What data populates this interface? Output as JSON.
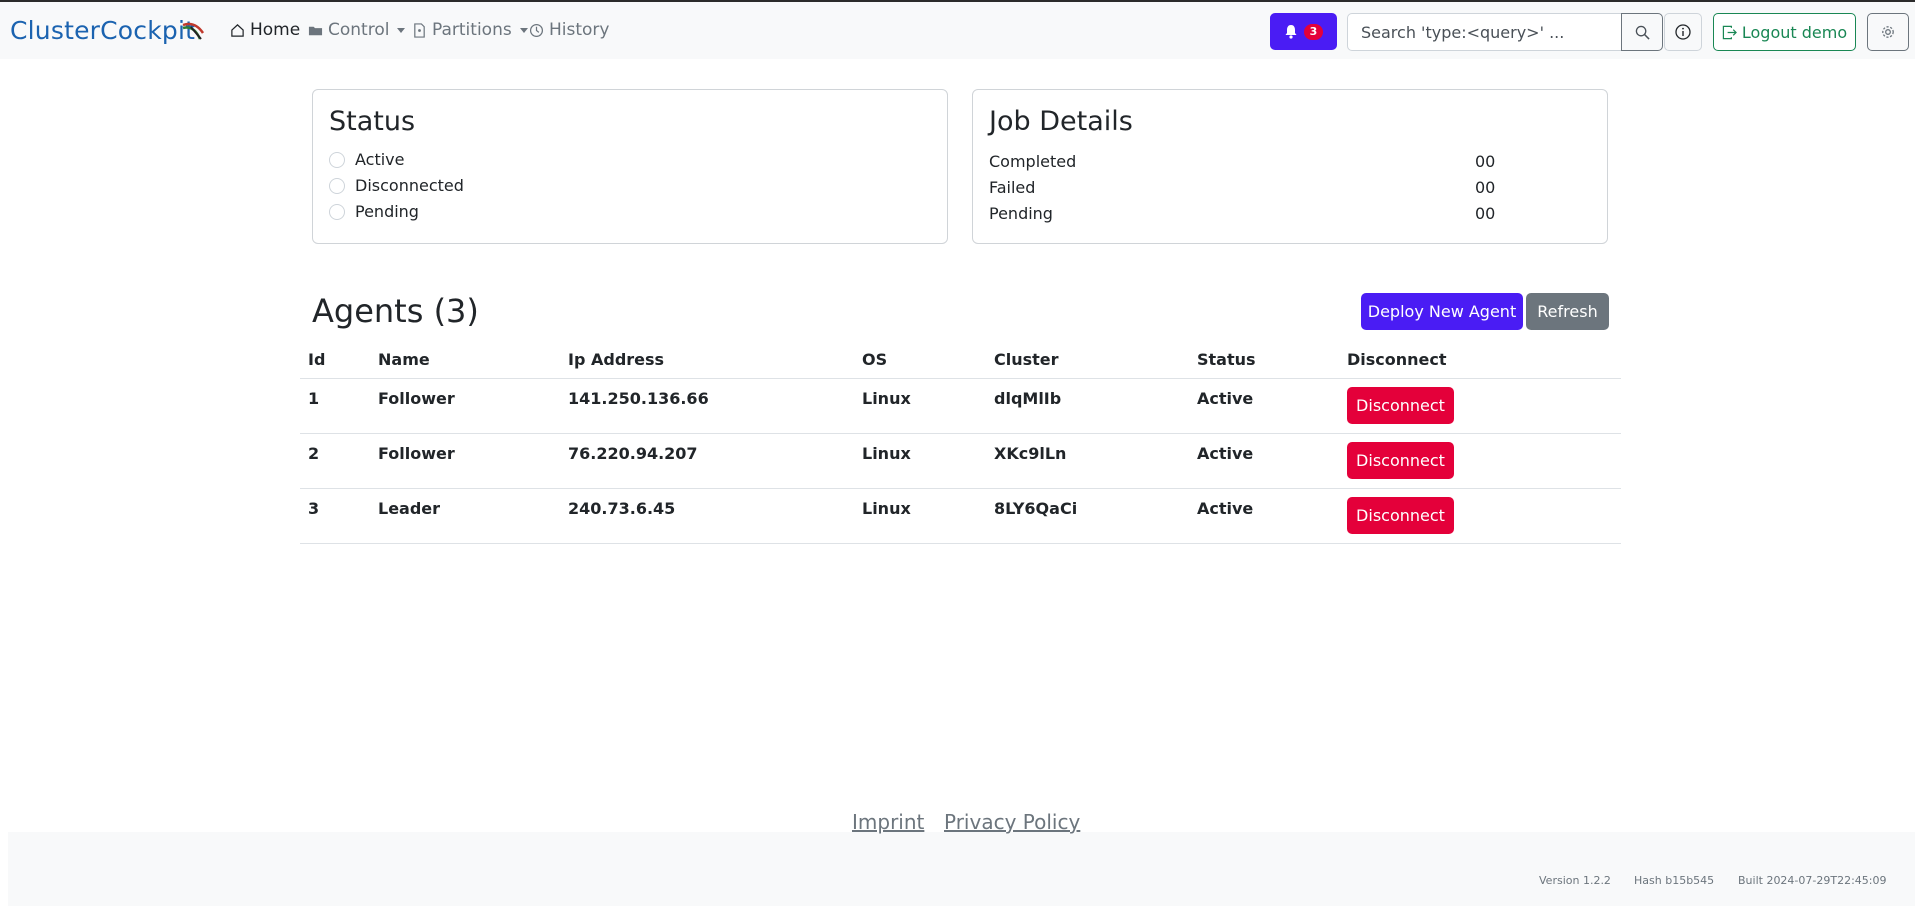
{
  "brand": "ClusterCockpit",
  "nav": {
    "home": "Home",
    "control": "Control",
    "partitions": "Partitions",
    "history": "History"
  },
  "notifications": {
    "count": "3"
  },
  "search": {
    "placeholder": "Search 'type:<query>' ..."
  },
  "logout_label": "Logout demo",
  "status_card": {
    "title": "Status",
    "options": [
      "Active",
      "Disconnected",
      "Pending"
    ]
  },
  "job_details": {
    "title": "Job Details",
    "rows": [
      {
        "label": "Completed",
        "value": "00"
      },
      {
        "label": "Failed",
        "value": "00"
      },
      {
        "label": "Pending",
        "value": "00"
      }
    ]
  },
  "agents": {
    "title": "Agents (3)",
    "deploy_label": "Deploy New Agent",
    "refresh_label": "Refresh",
    "columns": [
      "Id",
      "Name",
      "Ip Address",
      "OS",
      "Cluster",
      "Status",
      "Disconnect"
    ],
    "rows": [
      {
        "id": "1",
        "name": "Follower",
        "ip": "141.250.136.66",
        "os": "Linux",
        "cluster": "dlqMlIb",
        "status": "Active",
        "action": "Disconnect"
      },
      {
        "id": "2",
        "name": "Follower",
        "ip": "76.220.94.207",
        "os": "Linux",
        "cluster": "XKc9lLn",
        "status": "Active",
        "action": "Disconnect"
      },
      {
        "id": "3",
        "name": "Leader",
        "ip": "240.73.6.45",
        "os": "Linux",
        "cluster": "8LY6QaCi",
        "status": "Active",
        "action": "Disconnect"
      }
    ]
  },
  "footer": {
    "imprint": "Imprint",
    "privacy": "Privacy Policy",
    "version": "Version 1.2.2",
    "hash": "Hash b15b545",
    "built": "Built 2024-07-29T22:45:09"
  },
  "colors": {
    "primary": "#4a1cf4",
    "danger": "#e4003a",
    "success": "#198754",
    "secondary": "#6c757d",
    "brand": "#1b63b0"
  }
}
